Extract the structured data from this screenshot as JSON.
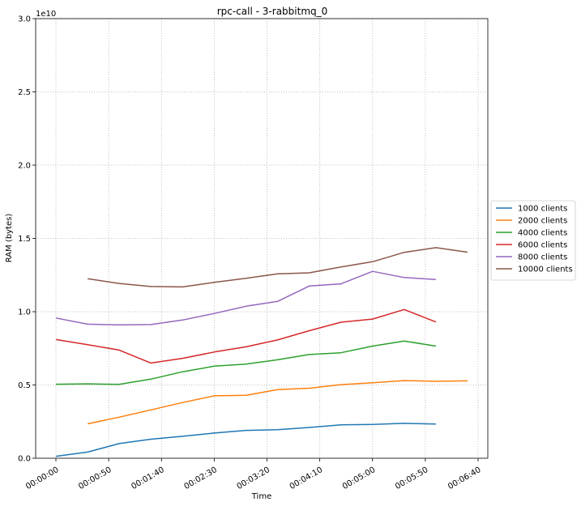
{
  "chart_data": {
    "type": "line",
    "title": "rpc-call - 3-rabbitmq_0",
    "xlabel": "Time",
    "ylabel": "RAM (bytes)",
    "y_offset_label": "1e10",
    "ylim": [
      0,
      30000000000
    ],
    "yticks": [
      0,
      5000000000,
      10000000000,
      15000000000,
      20000000000,
      25000000000,
      30000000000
    ],
    "ytick_labels": [
      "0.0",
      "0.5",
      "1.0",
      "1.5",
      "2.0",
      "2.5",
      "3.0"
    ],
    "xlim": [
      "00:00:00",
      "00:06:40"
    ],
    "xticks": [
      "00:00:00",
      "00:00:50",
      "00:01:40",
      "00:02:30",
      "00:03:20",
      "00:04:10",
      "00:05:00",
      "00:05:50",
      "00:06:40"
    ],
    "grid": true,
    "legend_position": "right",
    "series": [
      {
        "name": "1000 clients",
        "color": "#1f77b4",
        "x": [
          "00:00:00",
          "00:00:30",
          "00:01:00",
          "00:01:30",
          "00:02:00",
          "00:02:30",
          "00:03:00",
          "00:03:30",
          "00:04:00",
          "00:04:30",
          "00:05:00",
          "00:05:30",
          "00:06:00"
        ],
        "values": [
          130000000,
          420000000,
          1000000000,
          1300000000,
          1500000000,
          1720000000,
          1900000000,
          1950000000,
          2100000000,
          2280000000,
          2310000000,
          2380000000,
          2330000000
        ]
      },
      {
        "name": "2000 clients",
        "color": "#ff7f0e",
        "x": [
          "00:00:30",
          "00:01:00",
          "00:01:30",
          "00:02:00",
          "00:02:30",
          "00:03:00",
          "00:03:30",
          "00:04:00",
          "00:04:30",
          "00:05:00",
          "00:05:30",
          "00:06:00",
          "00:06:30"
        ],
        "values": [
          2350000000,
          2800000000,
          3300000000,
          3800000000,
          4260000000,
          4300000000,
          4680000000,
          4780000000,
          5020000000,
          5150000000,
          5300000000,
          5250000000,
          5280000000
        ]
      },
      {
        "name": "4000 clients",
        "color": "#2ca02c",
        "x": [
          "00:00:00",
          "00:00:30",
          "00:01:00",
          "00:01:30",
          "00:02:00",
          "00:02:30",
          "00:03:00",
          "00:03:30",
          "00:04:00",
          "00:04:30",
          "00:05:00",
          "00:05:30",
          "00:06:00"
        ],
        "values": [
          5050000000,
          5080000000,
          5040000000,
          5400000000,
          5900000000,
          6280000000,
          6420000000,
          6720000000,
          7080000000,
          7200000000,
          7650000000,
          8000000000,
          7650000000
        ]
      },
      {
        "name": "6000 clients",
        "color": "#d62728",
        "x": [
          "00:00:00",
          "00:00:30",
          "00:01:00",
          "00:01:30",
          "00:02:00",
          "00:02:30",
          "00:03:00",
          "00:03:30",
          "00:04:00",
          "00:04:30",
          "00:05:00",
          "00:05:30",
          "00:06:00"
        ],
        "values": [
          8100000000,
          7750000000,
          7380000000,
          6500000000,
          6820000000,
          7250000000,
          7600000000,
          8070000000,
          8700000000,
          9280000000,
          9500000000,
          10150000000,
          9300000000
        ]
      },
      {
        "name": "8000 clients",
        "color": "#9467bd",
        "x": [
          "00:00:00",
          "00:00:30",
          "00:01:00",
          "00:01:30",
          "00:02:00",
          "00:02:30",
          "00:03:00",
          "00:03:30",
          "00:04:00",
          "00:04:30",
          "00:05:00",
          "00:05:30",
          "00:06:00"
        ],
        "values": [
          9570000000,
          9150000000,
          9100000000,
          9120000000,
          9430000000,
          9880000000,
          10370000000,
          10700000000,
          11750000000,
          11900000000,
          12750000000,
          12330000000,
          12200000000
        ]
      },
      {
        "name": "10000 clients",
        "color": "#8c564b",
        "x": [
          "00:00:30",
          "00:01:00",
          "00:01:30",
          "00:02:00",
          "00:02:30",
          "00:03:00",
          "00:03:30",
          "00:04:00",
          "00:04:30",
          "00:05:00",
          "00:05:30",
          "00:06:00",
          "00:06:30"
        ],
        "values": [
          12250000000,
          11930000000,
          11720000000,
          11690000000,
          12000000000,
          12280000000,
          12580000000,
          12650000000,
          13050000000,
          13410000000,
          14050000000,
          14370000000,
          14060000000
        ]
      }
    ]
  }
}
